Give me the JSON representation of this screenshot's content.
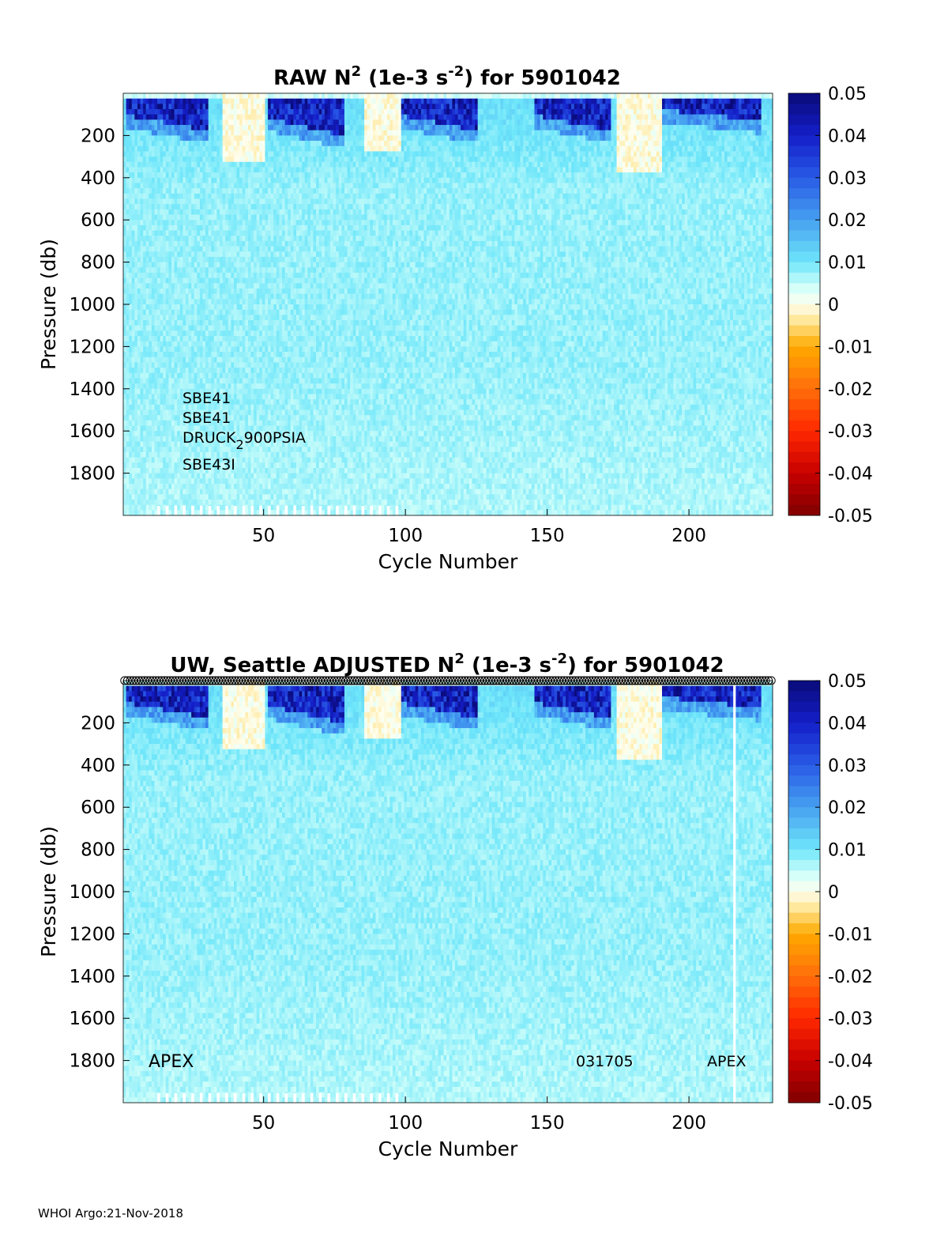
{
  "footer": "WHOI Argo:21-Nov-2018",
  "chart_data": [
    {
      "type": "heatmap",
      "title": {
        "prefix": "RAW N",
        "sup1": "2",
        "mid": " (1e-3 s",
        "sup2": "-2",
        "suffix": ") for 5901042"
      },
      "xlabel": "Cycle Number",
      "ylabel": "Pressure (db)",
      "xlim": [
        1,
        229
      ],
      "ylim": [
        2000,
        0
      ],
      "xticks": [
        50,
        100,
        150,
        200
      ],
      "yticks": [
        200,
        400,
        600,
        800,
        1000,
        1200,
        1400,
        1600,
        1800
      ],
      "colorbar": {
        "ticks": [
          0.05,
          0.04,
          0.03,
          0.02,
          0.01,
          0,
          -0.01,
          -0.02,
          -0.03,
          -0.04,
          -0.05
        ],
        "tick_labels": [
          "0.05",
          "0.04",
          "0.03",
          "0.02",
          "0.01",
          "0",
          "-0.01",
          "-0.02",
          "-0.03",
          "-0.04",
          "-0.05"
        ],
        "clim": [
          -0.05,
          0.05
        ],
        "colormap": "jet-like with white at zero"
      },
      "annotations": [
        {
          "text": "SBE41"
        },
        {
          "text": "SBE41"
        },
        {
          "text_main": "DRUCK",
          "text_sub": "2",
          "text_rest": "900PSIA"
        },
        {
          "text": "SBE43I"
        }
      ],
      "value_range_typical": [
        0.005,
        0.012
      ],
      "strong_positive_near_surface": 0.05,
      "negative_patches_near_surface": -0.005
    },
    {
      "type": "heatmap",
      "title": {
        "prefix": "UW, Seattle  ADJUSTED N",
        "sup1": "2",
        "mid": " (1e-3 s",
        "sup2": "-2",
        "suffix": ") for 5901042"
      },
      "xlabel": "Cycle Number",
      "ylabel": "Pressure (db)",
      "xlim": [
        1,
        229
      ],
      "ylim": [
        2000,
        0
      ],
      "xticks": [
        50,
        100,
        150,
        200
      ],
      "yticks": [
        200,
        400,
        600,
        800,
        1000,
        1200,
        1400,
        1600,
        1800
      ],
      "colorbar": {
        "ticks": [
          0.05,
          0.04,
          0.03,
          0.02,
          0.01,
          0,
          -0.01,
          -0.02,
          -0.03,
          -0.04,
          -0.05
        ],
        "tick_labels": [
          "0.05",
          "0.04",
          "0.03",
          "0.02",
          "0.01",
          "0",
          "-0.01",
          "-0.02",
          "-0.03",
          "-0.04",
          "-0.05"
        ],
        "clim": [
          -0.05,
          0.05
        ],
        "colormap": "jet-like with white at zero"
      },
      "annotations": [
        {
          "text": "APEX",
          "position": "bottom-left"
        },
        {
          "text": "031705",
          "position": "bottom-center-right"
        },
        {
          "text": "APEX",
          "position": "bottom-right"
        }
      ],
      "qc_markers": "open circles along top edge for every cycle",
      "gap_cycle": 216
    }
  ]
}
